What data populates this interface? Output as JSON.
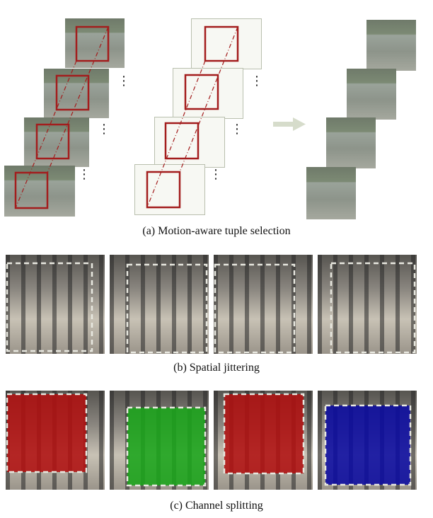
{
  "captions": {
    "a": "(a) Motion-aware tuple selection",
    "b": "(b) Spatial jittering",
    "c": "(c) Channel splitting"
  },
  "colors": {
    "selection_box": "#a31d1d",
    "dashed_crop": "#e8e8e0",
    "channel_red": "#b01010",
    "channel_green": "#1aa51a",
    "channel_blue": "#0a0aa0",
    "arrow": "#d6dccb"
  }
}
